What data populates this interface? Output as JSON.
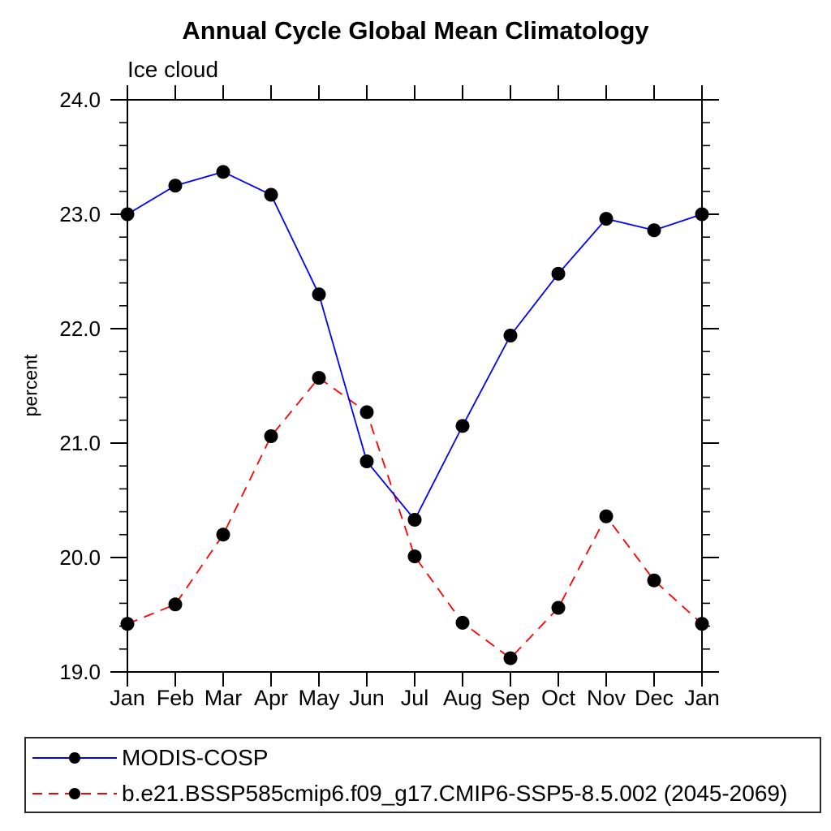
{
  "page": {
    "background": "#ffffff"
  },
  "chart_data": {
    "type": "line",
    "title": "Annual Cycle Global Mean Climatology",
    "subtitle": "Ice cloud",
    "xlabel": "",
    "ylabel": "percent",
    "categories": [
      "Jan",
      "Feb",
      "Mar",
      "Apr",
      "May",
      "Jun",
      "Jul",
      "Aug",
      "Sep",
      "Oct",
      "Nov",
      "Dec",
      "Jan"
    ],
    "ylim": [
      19.0,
      24.0
    ],
    "ytick_labels": [
      "24.0",
      "23.0",
      "22.0",
      "21.0",
      "20.0",
      "19.0"
    ],
    "y_minor_step": 0.2,
    "grid": "off",
    "legend_position": "bottom-left",
    "axis_color": "#000000",
    "marker_shape": "filled-circle",
    "series": [
      {
        "name": "MODIS-COSP",
        "color": "#0000ff",
        "line_style": "solid",
        "marker_color": "#000000",
        "values": [
          23.0,
          23.25,
          23.37,
          23.17,
          22.3,
          20.84,
          20.33,
          21.15,
          21.94,
          22.48,
          22.96,
          22.86,
          23.0
        ]
      },
      {
        "name": "b.e21.BSSP585cmip6.f09_g17.CMIP6-SSP5-8.5.002 (2045-2069)",
        "color": "#ff0000",
        "line_style": "dashed",
        "marker_color": "#000000",
        "values": [
          19.42,
          19.59,
          20.2,
          21.06,
          21.57,
          21.27,
          20.01,
          19.43,
          19.12,
          19.56,
          20.36,
          19.8,
          19.42
        ]
      }
    ]
  }
}
